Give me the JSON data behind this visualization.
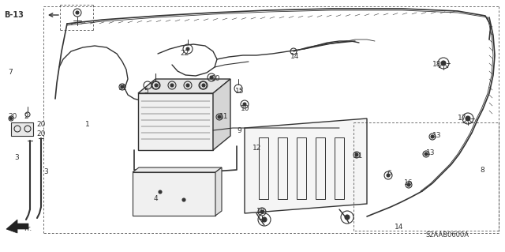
{
  "bg_color": "#ffffff",
  "diagram_code": "S2AAB0600A",
  "line_color": "#333333",
  "part_labels": [
    [
      "1",
      108,
      158
    ],
    [
      "2",
      30,
      147
    ],
    [
      "3",
      18,
      200
    ],
    [
      "3",
      55,
      218
    ],
    [
      "4",
      195,
      252
    ],
    [
      "5",
      182,
      115
    ],
    [
      "6",
      490,
      220
    ],
    [
      "7",
      10,
      92
    ],
    [
      "8",
      608,
      215
    ],
    [
      "9",
      300,
      165
    ],
    [
      "10",
      268,
      100
    ],
    [
      "10",
      305,
      138
    ],
    [
      "11",
      150,
      112
    ],
    [
      "11",
      278,
      148
    ],
    [
      "12",
      320,
      188
    ],
    [
      "13",
      548,
      172
    ],
    [
      "13",
      540,
      194
    ],
    [
      "14",
      368,
      72
    ],
    [
      "14",
      500,
      288
    ],
    [
      "15",
      298,
      115
    ],
    [
      "16",
      512,
      232
    ],
    [
      "17",
      580,
      150
    ],
    [
      "18",
      548,
      82
    ],
    [
      "19",
      325,
      268
    ],
    [
      "20",
      10,
      148
    ],
    [
      "20",
      46,
      158
    ],
    [
      "20",
      46,
      170
    ],
    [
      "21",
      448,
      198
    ],
    [
      "22",
      228,
      68
    ]
  ]
}
